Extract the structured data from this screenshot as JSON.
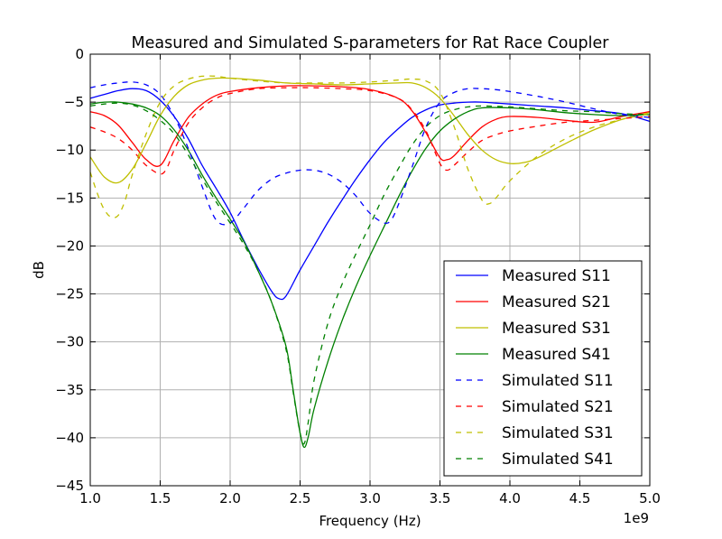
{
  "chart_data": {
    "type": "line",
    "title": "Measured and Simulated S-parameters for Rat Race Coupler",
    "xlabel": "Frequency (Hz)",
    "ylabel": "dB",
    "x_scale_label": "1e9",
    "xlim": [
      1.0,
      5.0
    ],
    "ylim": [
      -45,
      0
    ],
    "x_ticks": [
      1.0,
      1.5,
      2.0,
      2.5,
      3.0,
      3.5,
      4.0,
      4.5,
      5.0
    ],
    "x_tick_labels": [
      "1.0",
      "1.5",
      "2.0",
      "2.5",
      "3.0",
      "3.5",
      "4.0",
      "4.5",
      "5.0"
    ],
    "y_ticks": [
      0,
      -5,
      -10,
      -15,
      -20,
      -25,
      -30,
      -35,
      -40,
      -45
    ],
    "y_tick_labels": [
      "0",
      "−5",
      "−10",
      "−15",
      "−20",
      "−25",
      "−30",
      "−35",
      "−40",
      "−45"
    ],
    "grid": true,
    "legend_position": "lower-right",
    "series": [
      {
        "name": "Measured S11",
        "color": "#0000ff",
        "dash": "solid",
        "x": [
          1.0,
          1.1,
          1.2,
          1.3,
          1.4,
          1.5,
          1.6,
          1.7,
          1.8,
          1.9,
          2.0,
          2.1,
          2.2,
          2.3,
          2.35,
          2.4,
          2.5,
          2.6,
          2.7,
          2.8,
          2.9,
          3.0,
          3.1,
          3.2,
          3.3,
          3.4,
          3.5,
          3.6,
          3.7,
          3.8,
          3.9,
          4.0,
          4.2,
          4.4,
          4.6,
          4.8,
          5.0
        ],
        "y": [
          -4.6,
          -4.2,
          -3.8,
          -3.6,
          -3.8,
          -4.8,
          -6.5,
          -8.8,
          -11.6,
          -14.0,
          -16.5,
          -19.5,
          -22.3,
          -24.8,
          -25.5,
          -25.2,
          -22.5,
          -20.0,
          -17.5,
          -15.2,
          -13.0,
          -11.0,
          -9.2,
          -7.8,
          -6.6,
          -5.8,
          -5.3,
          -5.1,
          -5.0,
          -5.0,
          -5.1,
          -5.2,
          -5.4,
          -5.6,
          -5.9,
          -6.2,
          -7.0
        ]
      },
      {
        "name": "Measured S21",
        "color": "#ff0000",
        "dash": "solid",
        "x": [
          1.0,
          1.1,
          1.2,
          1.3,
          1.4,
          1.5,
          1.6,
          1.7,
          1.8,
          1.9,
          2.0,
          2.2,
          2.4,
          2.6,
          2.8,
          3.0,
          3.2,
          3.3,
          3.4,
          3.5,
          3.55,
          3.6,
          3.7,
          3.8,
          3.9,
          4.0,
          4.2,
          4.4,
          4.6,
          4.8,
          5.0
        ],
        "y": [
          -6.0,
          -6.4,
          -7.4,
          -9.2,
          -11.0,
          -11.6,
          -9.0,
          -6.6,
          -5.2,
          -4.3,
          -3.9,
          -3.5,
          -3.3,
          -3.3,
          -3.4,
          -3.7,
          -4.6,
          -5.9,
          -8.2,
          -10.8,
          -11.0,
          -10.6,
          -9.0,
          -7.6,
          -6.8,
          -6.5,
          -6.6,
          -6.9,
          -7.1,
          -6.5,
          -6.0
        ]
      },
      {
        "name": "Measured S31",
        "color": "#bfbf00",
        "dash": "solid",
        "x": [
          1.0,
          1.1,
          1.2,
          1.3,
          1.4,
          1.5,
          1.6,
          1.7,
          1.8,
          1.9,
          2.0,
          2.2,
          2.4,
          2.6,
          2.8,
          3.0,
          3.2,
          3.3,
          3.4,
          3.5,
          3.6,
          3.7,
          3.8,
          3.9,
          4.0,
          4.1,
          4.2,
          4.4,
          4.6,
          4.8,
          5.0
        ],
        "y": [
          -10.7,
          -12.8,
          -13.4,
          -12.0,
          -9.3,
          -6.4,
          -4.4,
          -3.2,
          -2.7,
          -2.5,
          -2.5,
          -2.7,
          -3.0,
          -3.1,
          -3.2,
          -3.1,
          -3.0,
          -3.0,
          -3.5,
          -4.6,
          -6.4,
          -8.4,
          -10.0,
          -11.0,
          -11.4,
          -11.3,
          -10.8,
          -9.3,
          -7.9,
          -6.8,
          -6.1
        ]
      },
      {
        "name": "Measured S41",
        "color": "#008000",
        "dash": "solid",
        "x": [
          1.0,
          1.1,
          1.2,
          1.3,
          1.4,
          1.5,
          1.6,
          1.7,
          1.8,
          1.9,
          2.0,
          2.1,
          2.2,
          2.3,
          2.4,
          2.45,
          2.5,
          2.53,
          2.56,
          2.6,
          2.7,
          2.8,
          2.9,
          3.0,
          3.1,
          3.2,
          3.3,
          3.4,
          3.5,
          3.6,
          3.7,
          3.8,
          4.0,
          4.2,
          4.4,
          4.6,
          4.8,
          5.0
        ],
        "y": [
          -5.2,
          -5.0,
          -5.0,
          -5.2,
          -5.6,
          -6.4,
          -7.9,
          -10.0,
          -12.6,
          -15.0,
          -17.2,
          -19.6,
          -22.6,
          -26.0,
          -30.5,
          -35.0,
          -39.5,
          -41.0,
          -39.8,
          -37.0,
          -32.0,
          -27.8,
          -24.2,
          -21.0,
          -18.0,
          -15.0,
          -12.2,
          -9.8,
          -8.0,
          -6.8,
          -6.0,
          -5.6,
          -5.6,
          -5.8,
          -6.1,
          -6.3,
          -6.4,
          -6.3
        ]
      },
      {
        "name": "Simulated S11",
        "color": "#0000ff",
        "dash": "dashed",
        "x": [
          1.0,
          1.1,
          1.2,
          1.3,
          1.4,
          1.5,
          1.6,
          1.7,
          1.8,
          1.9,
          2.0,
          2.1,
          2.2,
          2.3,
          2.4,
          2.5,
          2.6,
          2.7,
          2.8,
          2.9,
          3.0,
          3.1,
          3.15,
          3.2,
          3.3,
          3.4,
          3.5,
          3.6,
          3.7,
          3.8,
          3.9,
          4.0,
          4.2,
          4.4,
          4.6,
          4.8,
          5.0
        ],
        "y": [
          -3.5,
          -3.2,
          -3.0,
          -2.9,
          -3.2,
          -4.2,
          -6.5,
          -9.8,
          -13.8,
          -17.3,
          -17.6,
          -16.0,
          -14.2,
          -13.0,
          -12.4,
          -12.1,
          -12.1,
          -12.5,
          -13.4,
          -14.8,
          -16.6,
          -17.6,
          -17.3,
          -15.8,
          -11.8,
          -7.6,
          -5.0,
          -4.0,
          -3.6,
          -3.6,
          -3.7,
          -3.9,
          -4.4,
          -5.0,
          -5.7,
          -6.3,
          -6.6
        ]
      },
      {
        "name": "Simulated S21",
        "color": "#ff0000",
        "dash": "dashed",
        "x": [
          1.0,
          1.1,
          1.2,
          1.3,
          1.4,
          1.5,
          1.55,
          1.6,
          1.7,
          1.8,
          1.9,
          2.0,
          2.2,
          2.4,
          2.6,
          2.8,
          3.0,
          3.2,
          3.3,
          3.4,
          3.5,
          3.55,
          3.6,
          3.7,
          3.8,
          3.9,
          4.0,
          4.2,
          4.4,
          4.6,
          4.8,
          5.0
        ],
        "y": [
          -7.6,
          -8.1,
          -8.8,
          -10.0,
          -11.6,
          -12.5,
          -11.8,
          -10.0,
          -7.2,
          -5.6,
          -4.6,
          -4.1,
          -3.6,
          -3.5,
          -3.5,
          -3.6,
          -3.8,
          -4.6,
          -5.8,
          -8.0,
          -11.4,
          -12.1,
          -11.6,
          -10.2,
          -9.0,
          -8.4,
          -8.0,
          -7.5,
          -7.1,
          -6.9,
          -6.7,
          -6.5
        ]
      },
      {
        "name": "Simulated S31",
        "color": "#bfbf00",
        "dash": "dashed",
        "x": [
          1.0,
          1.05,
          1.1,
          1.15,
          1.2,
          1.25,
          1.3,
          1.4,
          1.5,
          1.6,
          1.7,
          1.8,
          1.9,
          2.0,
          2.2,
          2.4,
          2.6,
          2.8,
          3.0,
          3.2,
          3.3,
          3.4,
          3.5,
          3.6,
          3.7,
          3.8,
          3.85,
          3.9,
          4.0,
          4.2,
          4.4,
          4.6,
          4.8,
          5.0
        ],
        "y": [
          -12.3,
          -14.5,
          -16.2,
          -17.0,
          -16.8,
          -15.2,
          -12.6,
          -8.3,
          -5.0,
          -3.3,
          -2.6,
          -2.3,
          -2.3,
          -2.5,
          -2.8,
          -3.0,
          -3.0,
          -3.0,
          -2.9,
          -2.7,
          -2.6,
          -2.8,
          -4.0,
          -7.5,
          -12.0,
          -15.2,
          -15.6,
          -15.0,
          -13.2,
          -10.6,
          -8.8,
          -7.6,
          -6.8,
          -6.2
        ]
      },
      {
        "name": "Simulated S41",
        "color": "#008000",
        "dash": "dashed",
        "x": [
          1.0,
          1.1,
          1.2,
          1.3,
          1.4,
          1.5,
          1.6,
          1.7,
          1.8,
          1.9,
          2.0,
          2.1,
          2.2,
          2.3,
          2.4,
          2.45,
          2.5,
          2.53,
          2.56,
          2.6,
          2.7,
          2.8,
          2.9,
          3.0,
          3.1,
          3.2,
          3.3,
          3.4,
          3.5,
          3.6,
          3.7,
          3.8,
          4.0,
          4.2,
          4.4,
          4.6,
          4.8,
          5.0
        ],
        "y": [
          -5.4,
          -5.2,
          -5.1,
          -5.3,
          -5.9,
          -6.9,
          -8.3,
          -10.5,
          -13.0,
          -15.4,
          -17.6,
          -19.9,
          -22.6,
          -26.0,
          -30.8,
          -35.2,
          -39.5,
          -40.6,
          -38.2,
          -34.0,
          -28.0,
          -24.0,
          -20.8,
          -17.8,
          -14.7,
          -12.0,
          -9.5,
          -7.6,
          -6.4,
          -5.8,
          -5.5,
          -5.4,
          -5.5,
          -5.7,
          -5.9,
          -6.0,
          -6.2,
          -6.3
        ]
      }
    ]
  }
}
